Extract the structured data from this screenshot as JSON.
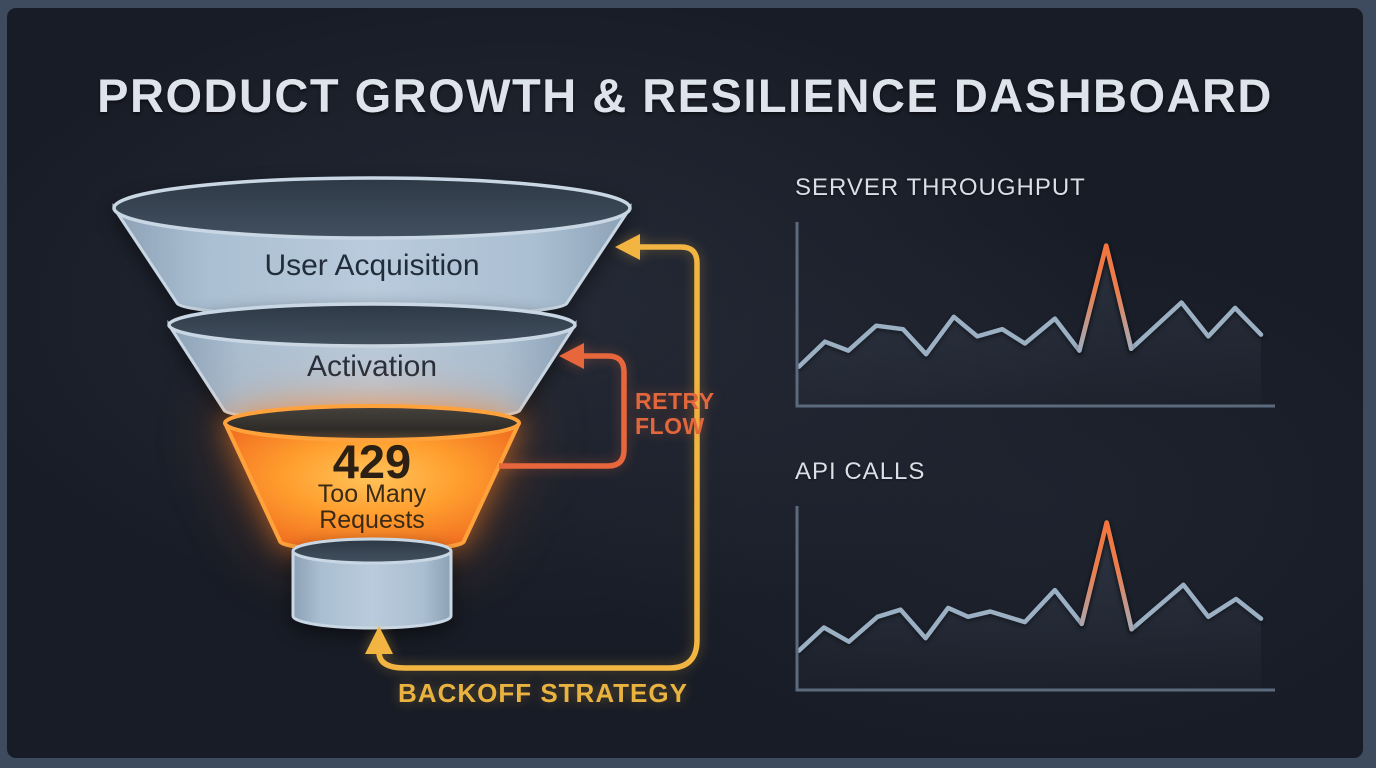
{
  "title": "PRODUCT GROWTH & RESILIENCE DASHBOARD",
  "funnel": {
    "stages": [
      {
        "label": "User Acquisition",
        "highlighted": false
      },
      {
        "label": "Activation",
        "highlighted": false
      },
      {
        "code": "429",
        "label_line1": "Too Many",
        "label_line2": "Requests",
        "highlighted": true
      }
    ]
  },
  "annotations": {
    "retry_flow": {
      "line1": "RETRY",
      "line2": "FLOW",
      "color": "#e2673c"
    },
    "backoff_strategy": {
      "label": "BACKOFF STRATEGY",
      "color": "#eab340"
    }
  },
  "colors": {
    "frame": "#3e4a5d",
    "panel_bg": "#181c26",
    "funnel_blue": "#aec1d3",
    "funnel_opening_dark": "#36424f",
    "alert_orange": "#f08a2e",
    "arrow_yellow": "#f2b541",
    "arrow_orange": "#e8663c",
    "chart_line_blue": "#9cb0c4",
    "spike_orange": "#f4733a",
    "title_text": "#dde4ec"
  },
  "chart_data": [
    {
      "type": "line",
      "title": "SERVER THROUGHPUT",
      "xlabel": "",
      "ylabel": "",
      "axis_ticks": "none shown - relative units 0-100 estimated from pixel heights",
      "ylim": [
        0,
        100
      ],
      "x_pct": [
        0,
        5.6,
        10.7,
        16.7,
        22.5,
        27.5,
        33.5,
        38.6,
        44.0,
        48.9,
        55.4,
        60.7,
        66.5,
        71.9,
        82.8,
        88.6,
        94.4,
        100
      ],
      "values": [
        21,
        35,
        30,
        44,
        42,
        28,
        49,
        38,
        42,
        34,
        48,
        30,
        89,
        31,
        57,
        38,
        54,
        39
      ],
      "spike_index": 12,
      "spike_color": "#f4733a",
      "line_color": "#9cb0c4",
      "grid": false,
      "legend": "none"
    },
    {
      "type": "line",
      "title": "API CALLS",
      "xlabel": "",
      "ylabel": "",
      "axis_ticks": "none shown - relative units 0-100 estimated from pixel heights",
      "ylim": [
        0,
        100
      ],
      "x_pct": [
        0,
        5.4,
        10.8,
        17.0,
        22.0,
        27.4,
        32.3,
        36.6,
        41.4,
        48.9,
        55.4,
        61.2,
        66.6,
        72.0,
        83.2,
        88.6,
        94.6,
        100
      ],
      "values": [
        21,
        34,
        26,
        40,
        44,
        28,
        45,
        40,
        43,
        37,
        55,
        36,
        93,
        33,
        58,
        40,
        50,
        39
      ],
      "spike_index": 12,
      "spike_color": "#f4733a",
      "line_color": "#9cb0c4",
      "grid": false,
      "legend": "none"
    }
  ]
}
